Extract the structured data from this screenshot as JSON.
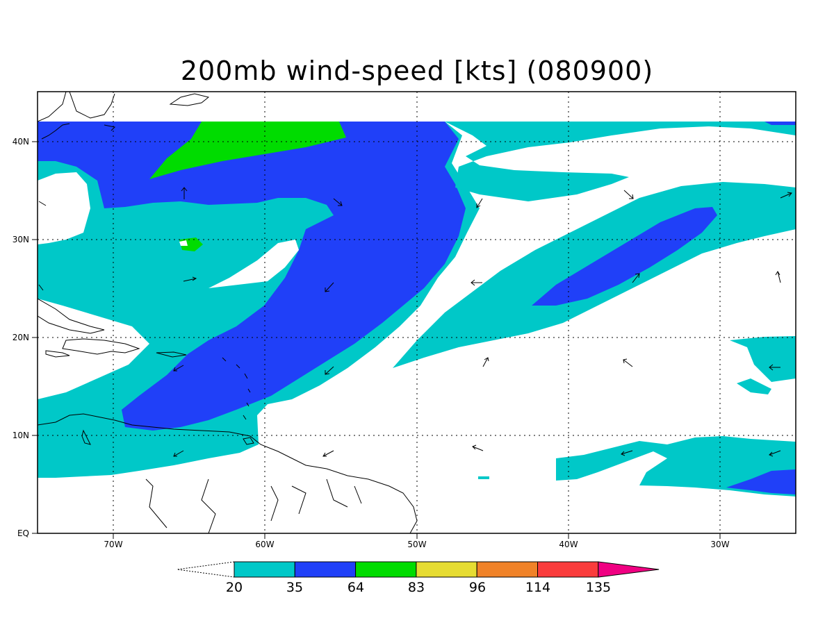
{
  "title": "200mb wind-speed [kts] (080900)",
  "map": {
    "lon_ticks": [
      "70W",
      "60W",
      "50W",
      "40W",
      "30W"
    ],
    "lat_ticks": [
      "40N",
      "30N",
      "20N",
      "10N",
      "EQ"
    ]
  },
  "colorbar": {
    "labels": [
      "20",
      "35",
      "64",
      "83",
      "96",
      "114",
      "135"
    ],
    "colors": [
      "#00c8c8",
      "#2040f8",
      "#00dc00",
      "#e6dc32",
      "#f08228",
      "#fa3c3c",
      "#f00082"
    ]
  },
  "palette": {
    "band_20_35": "#00c8c8",
    "band_35_64": "#2040f8",
    "band_64_83": "#00dc00"
  }
}
